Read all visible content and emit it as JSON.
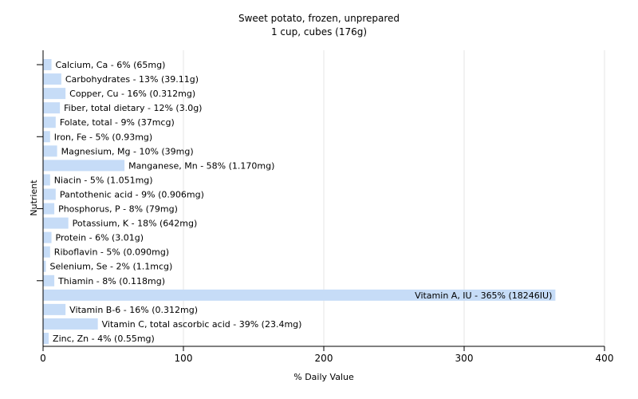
{
  "chart_data": {
    "type": "bar",
    "orientation": "horizontal",
    "title": "Sweet potato, frozen, unprepared",
    "subtitle": "1 cup, cubes (176g)",
    "xlabel": "% Daily Value",
    "ylabel": "Nutrient",
    "xlim": [
      0,
      400
    ],
    "xticks": [
      0,
      100,
      200,
      300,
      400
    ],
    "grid": true,
    "bar_color": "#c6dcf7",
    "categories": [
      "Calcium, Ca",
      "Carbohydrates",
      "Copper, Cu",
      "Fiber, total dietary",
      "Folate, total",
      "Iron, Fe",
      "Magnesium, Mg",
      "Manganese, Mn",
      "Niacin",
      "Pantothenic acid",
      "Phosphorus, P",
      "Potassium, K",
      "Protein",
      "Riboflavin",
      "Selenium, Se",
      "Thiamin",
      "Vitamin A, IU",
      "Vitamin B-6",
      "Vitamin C, total ascorbic acid",
      "Zinc, Zn"
    ],
    "values": [
      6,
      13,
      16,
      12,
      9,
      5,
      10,
      58,
      5,
      9,
      8,
      18,
      6,
      5,
      2,
      8,
      365,
      16,
      39,
      4
    ],
    "labels": [
      "Calcium, Ca - 6% (65mg)",
      "Carbohydrates - 13% (39.11g)",
      "Copper, Cu - 16% (0.312mg)",
      "Fiber, total dietary - 12% (3.0g)",
      "Folate, total - 9% (37mcg)",
      "Iron, Fe - 5% (0.93mg)",
      "Magnesium, Mg - 10% (39mg)",
      "Manganese, Mn - 58% (1.170mg)",
      "Niacin - 5% (1.051mg)",
      "Pantothenic acid - 9% (0.906mg)",
      "Phosphorus, P - 8% (79mg)",
      "Potassium, K - 18% (642mg)",
      "Protein - 6% (3.01g)",
      "Riboflavin - 5% (0.090mg)",
      "Selenium, Se - 2% (1.1mcg)",
      "Thiamin - 8% (0.118mg)",
      "Vitamin A, IU - 365% (18246IU)",
      "Vitamin B-6 - 16% (0.312mg)",
      "Vitamin C, total ascorbic acid - 39% (23.4mg)",
      "Zinc, Zn - 4% (0.55mg)"
    ]
  }
}
